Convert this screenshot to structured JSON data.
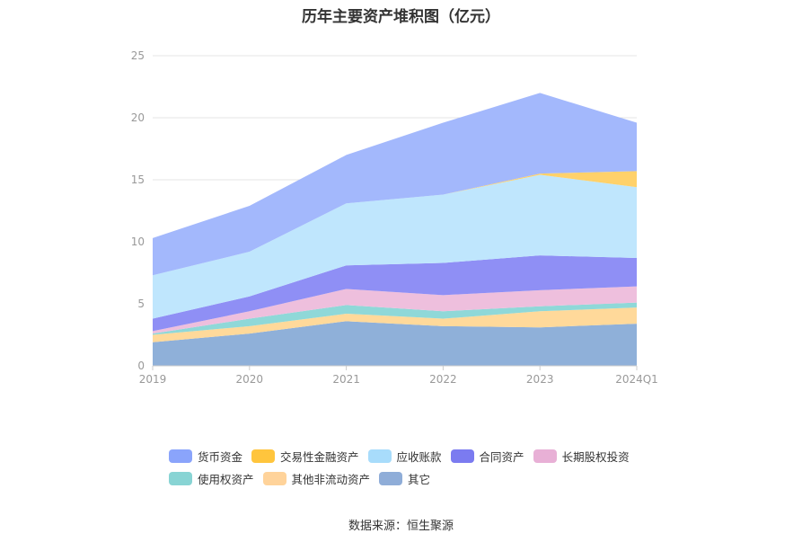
{
  "chart_data": {
    "type": "area",
    "stacked": true,
    "title": "历年主要资产堆积图（亿元）",
    "categories": [
      "2019",
      "2020",
      "2021",
      "2022",
      "2023",
      "2024Q1"
    ],
    "ylim": [
      0,
      25
    ],
    "yticks": [
      "0",
      "5",
      "10",
      "15",
      "20",
      "25"
    ],
    "grid": true,
    "legend_position": "bottom",
    "series": [
      {
        "name": "其它",
        "color": "#8fb0d9",
        "values": [
          1.9,
          2.6,
          3.6,
          3.2,
          3.1,
          3.4
        ]
      },
      {
        "name": "其他非流动资产",
        "color": "#ffd99a",
        "values": [
          0.6,
          0.6,
          0.6,
          0.6,
          1.3,
          1.3
        ]
      },
      {
        "name": "使用权资产",
        "color": "#8fd8d8",
        "values": [
          0.1,
          0.6,
          0.7,
          0.6,
          0.4,
          0.4
        ]
      },
      {
        "name": "长期股权投资",
        "color": "#eebfdd",
        "values": [
          0.2,
          0.6,
          1.3,
          1.3,
          1.3,
          1.3
        ]
      },
      {
        "name": "合同资产",
        "color": "#8f8ff5",
        "values": [
          1.0,
          1.2,
          1.9,
          2.6,
          2.8,
          2.3
        ]
      },
      {
        "name": "应收账款",
        "color": "#bfe6fd",
        "values": [
          3.5,
          3.6,
          5.0,
          5.5,
          6.5,
          5.7
        ]
      },
      {
        "name": "交易性金融资产",
        "color": "#ffd16a",
        "values": [
          0.0,
          0.0,
          0.0,
          0.0,
          0.1,
          1.3
        ]
      },
      {
        "name": "货币资金",
        "color": "#a3b8fc",
        "values": [
          3.0,
          3.7,
          3.9,
          5.8,
          6.5,
          3.9
        ]
      }
    ]
  },
  "legend": {
    "row1": [
      {
        "label": "货币资金",
        "color": "#8aa4fb"
      },
      {
        "label": "交易性金融资产",
        "color": "#ffc53d"
      },
      {
        "label": "应收账款",
        "color": "#a8dcfb"
      },
      {
        "label": "合同资产",
        "color": "#7b7bf0"
      },
      {
        "label": "长期股权投资",
        "color": "#e8b0d6"
      }
    ],
    "row2": [
      {
        "label": "使用权资产",
        "color": "#88d4d4"
      },
      {
        "label": "其他非流动资产",
        "color": "#ffd39a"
      },
      {
        "label": "其它",
        "color": "#8fadd8"
      }
    ]
  },
  "source": "数据来源：恒生聚源"
}
